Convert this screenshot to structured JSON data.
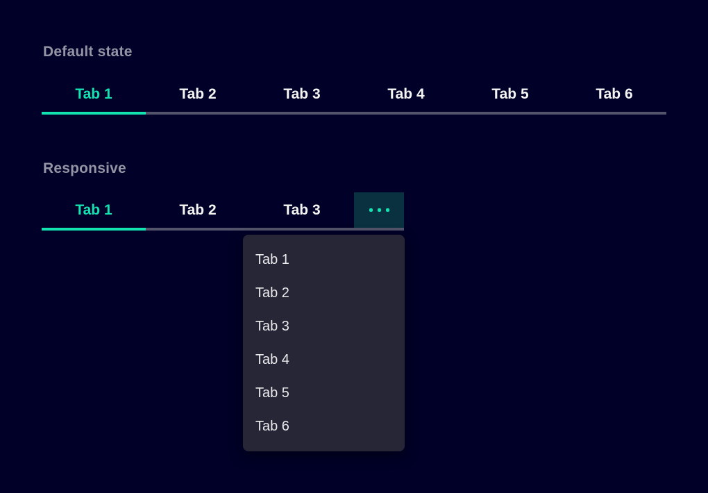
{
  "colors": {
    "background": "#000028",
    "accent": "#13e2b1",
    "tab_text": "#f4f4f2",
    "section_label": "#9394a4",
    "inactive_underline": "#53536b",
    "overflow_button_bg": "#0a3140",
    "dropdown_bg": "#262637",
    "dropdown_text": "#ebebee"
  },
  "sections": [
    {
      "label": "Default state",
      "tabs": [
        {
          "label": "Tab 1",
          "active": true
        },
        {
          "label": "Tab 2",
          "active": false
        },
        {
          "label": "Tab 3",
          "active": false
        },
        {
          "label": "Tab 4",
          "active": false
        },
        {
          "label": "Tab 5",
          "active": false
        },
        {
          "label": "Tab 6",
          "active": false
        }
      ]
    },
    {
      "label": "Responsive",
      "tabs": [
        {
          "label": "Tab 1",
          "active": true
        },
        {
          "label": "Tab 2",
          "active": false
        },
        {
          "label": "Tab 3",
          "active": false
        }
      ],
      "overflow_button": {
        "icon": "ellipsis-icon"
      },
      "dropdown": {
        "items": [
          "Tab 1",
          "Tab 2",
          "Tab 3",
          "Tab 4",
          "Tab 5",
          "Tab 6"
        ]
      }
    }
  ]
}
